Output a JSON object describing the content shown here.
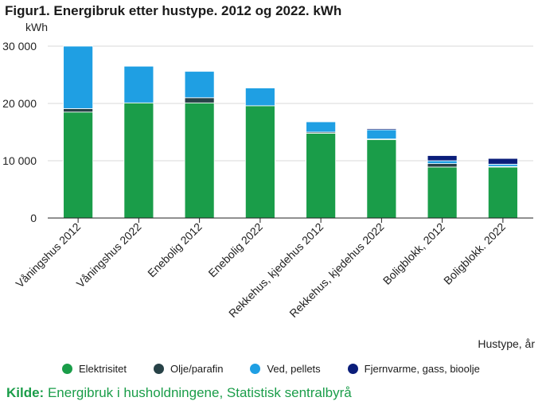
{
  "header": {
    "title": "Figur1. Energibruk etter hustype. 2012 og 2022. kWh"
  },
  "colors": {
    "elektrisitet": "#1a9d49",
    "olje": "#274247",
    "ved": "#1f9fe3",
    "fjernvarme": "#0a1d7a",
    "grid": "#d9d9d9",
    "axis": "#222222",
    "source": "#1a9d49"
  },
  "chart_data": {
    "type": "bar",
    "stacked": true,
    "ylabel": "kWh",
    "xlabel": "Hustype, år",
    "ylim": [
      0,
      30000
    ],
    "yticks": [
      0,
      10000,
      20000,
      30000
    ],
    "ytick_labels": [
      "0",
      "10 000",
      "20 000",
      "30 000"
    ],
    "grid": true,
    "legend_position": "bottom",
    "categories": [
      "Våningshus 2012",
      "Våningshus 2022",
      "Enebolig 2012",
      "Enebolig 2022",
      "Rekkehus, kjedehus 2012",
      "Rekkehus, kjedehus 2022",
      "Boligblokk, 2012",
      "Boligblokk. 2022"
    ],
    "series": [
      {
        "name": "Elektrisitet",
        "color_key": "elektrisitet",
        "values": [
          18500,
          20100,
          20100,
          19600,
          14800,
          13700,
          8900,
          8900
        ]
      },
      {
        "name": "Olje/parafin",
        "color_key": "olje",
        "values": [
          600,
          0,
          900,
          0,
          200,
          100,
          600,
          100
        ]
      },
      {
        "name": "Ved, pellets",
        "color_key": "ved",
        "values": [
          10900,
          6400,
          4600,
          3100,
          1800,
          1600,
          500,
          400
        ]
      },
      {
        "name": "Fjernvarme, gass, bioolje",
        "color_key": "fjernvarme",
        "values": [
          0,
          0,
          0,
          0,
          100,
          200,
          900,
          1000
        ]
      }
    ]
  },
  "source": {
    "key": "Kilde:",
    "text": "Energibruk i husholdningene, Statistisk sentralbyrå"
  }
}
